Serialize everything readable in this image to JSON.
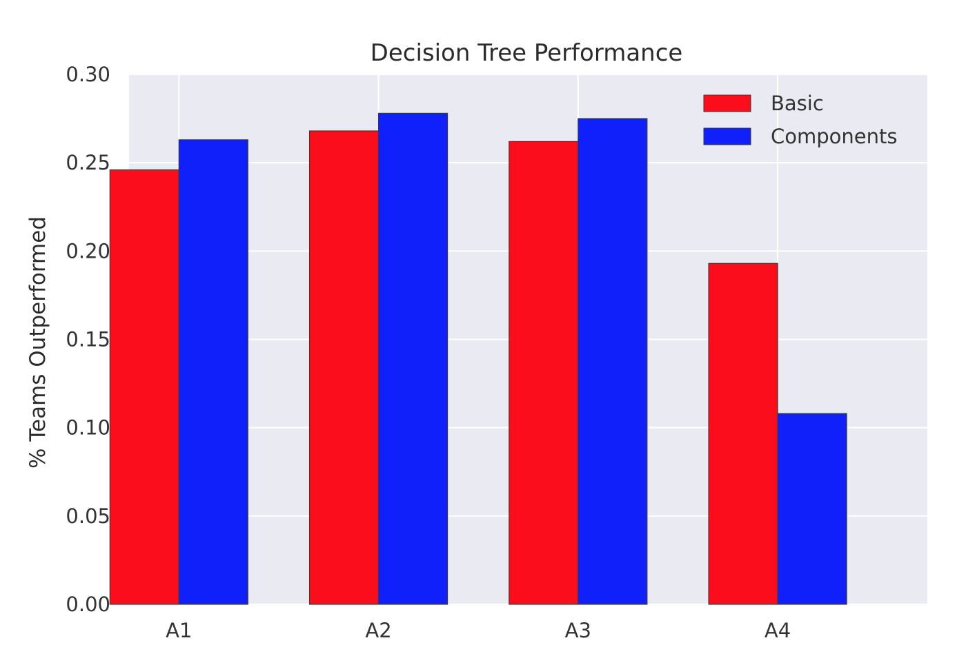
{
  "chart_data": {
    "type": "bar",
    "title": "Decision Tree Performance",
    "xlabel": "",
    "ylabel": "% Teams Outperformed",
    "categories": [
      "A1",
      "A2",
      "A3",
      "A4"
    ],
    "series": [
      {
        "name": "Basic",
        "color": "#fc0d1b",
        "values": [
          0.246,
          0.268,
          0.262,
          0.193
        ]
      },
      {
        "name": "Components",
        "color": "#0f20fb",
        "values": [
          0.263,
          0.278,
          0.275,
          0.108
        ]
      }
    ],
    "ylim": [
      0,
      0.3
    ],
    "yticks": [
      "0.00",
      "0.05",
      "0.10",
      "0.15",
      "0.20",
      "0.25",
      "0.30"
    ],
    "grid": true,
    "legend_position": "top-right",
    "background_color": "#eaeaf2"
  }
}
